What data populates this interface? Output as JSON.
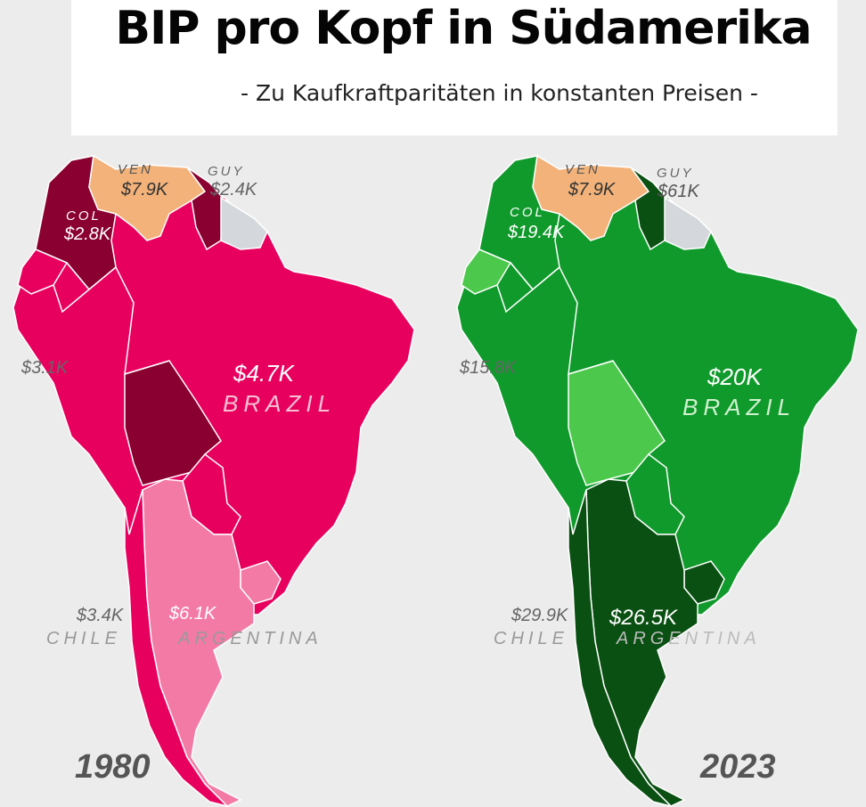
{
  "title": "BIP pro Kopf in Südamerika",
  "subtitle": "- Zu Kaufkraftparitäten in konstanten Preisen -",
  "maps": [
    {
      "year": "1980",
      "countries": {
        "venezuela": {
          "code": "VEN",
          "value": "$7.9K"
        },
        "guyana": {
          "code": "GUY",
          "value": "$2.4K"
        },
        "colombia": {
          "code": "COL",
          "value": "$2.8K"
        },
        "peru": {
          "value": "$3.1K"
        },
        "brazil": {
          "name": "BRAZIL",
          "value": "$4.7K"
        },
        "chile": {
          "name": "CHILE",
          "value": "$3.4K"
        },
        "argentina": {
          "name": "ARGENTINA",
          "value": "$6.1K"
        }
      }
    },
    {
      "year": "2023",
      "countries": {
        "venezuela": {
          "code": "VEN",
          "value": "$7.9K"
        },
        "guyana": {
          "code": "GUY",
          "value": "$61K"
        },
        "colombia": {
          "code": "COL",
          "value": "$19.4K"
        },
        "peru": {
          "value": "$15.8K"
        },
        "brazil": {
          "name": "BRAZIL",
          "value": "$20K"
        },
        "chile": {
          "name": "CHILE",
          "value": "$29.9K"
        },
        "argentina": {
          "name": "ARGENTINA",
          "value": "$26.5K"
        }
      }
    }
  ],
  "colors": {
    "1980": {
      "base": "#e8005e",
      "dark": "#8a0030",
      "light": "#f47aa6",
      "venezuela": "#f2b27a",
      "guiana": "#d4d8dc"
    },
    "2023": {
      "base": "#109a2c",
      "dark": "#0a5012",
      "light": "#4cc94c",
      "venezuela": "#f2b27a",
      "guiana": "#d4d8dc"
    }
  }
}
